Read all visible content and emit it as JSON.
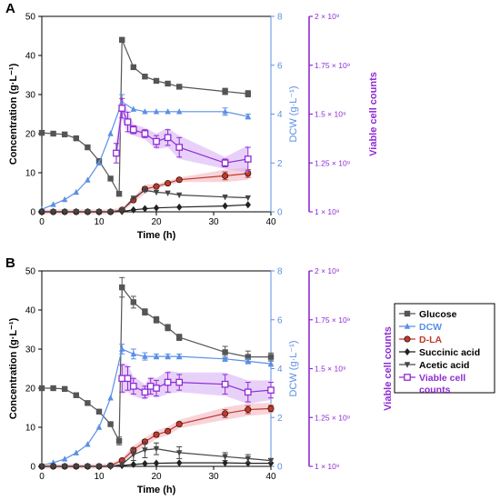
{
  "colors": {
    "glucose": "#555555",
    "dcw": "#5b8fe6",
    "dla": "#c0392b",
    "succinic": "#222222",
    "acetic": "#444444",
    "viable": "#8e2bd4",
    "dla_band": "#f4b7c2",
    "viable_band": "#d9b3f5"
  },
  "legend_items": [
    "Glucose",
    "DCW",
    "D-LA",
    "Succinic acid",
    "Acetic acid",
    "Viable cell counts"
  ],
  "chart_data": [
    {
      "type": "line",
      "panel_label": "A",
      "xlabel": "Time (h)",
      "ylabel": "Concentration (g·L⁻¹)",
      "y2label": "DCW (g·L⁻¹)",
      "y3label": "Viable cell counts",
      "xlim": [
        0,
        40
      ],
      "ylim": [
        0,
        50
      ],
      "y2lim": [
        0,
        8
      ],
      "y3lim": [
        1000000000.0,
        2000000000.0
      ],
      "xticks": [
        "0",
        "10",
        "20",
        "30",
        "40"
      ],
      "yticks": [
        "0",
        "10",
        "20",
        "30",
        "40",
        "50"
      ],
      "y2ticks": [
        "0",
        "2",
        "4",
        "6",
        "8"
      ],
      "y3ticks": [
        "1 × 10⁹",
        "1.25 × 10⁹",
        "1.5 × 10⁹",
        "1.75 × 10⁹",
        "2 × 10⁹"
      ],
      "legend": "none",
      "grid": false,
      "series": [
        {
          "name": "Glucose",
          "axis": "left",
          "marker": "square-filled",
          "x": [
            0,
            2,
            4,
            6,
            8,
            10,
            12,
            13.5,
            14,
            16,
            18,
            20,
            22,
            24,
            32,
            36
          ],
          "y": [
            20.2,
            20,
            19.8,
            18.8,
            16.5,
            13,
            8.5,
            4.6,
            44,
            37,
            34.6,
            33.5,
            32.8,
            32,
            30.8,
            30.2
          ],
          "err": [
            0,
            0,
            0,
            0,
            0,
            0,
            0,
            0,
            0.5,
            0,
            0,
            0,
            0,
            0,
            0.8,
            0.8
          ]
        },
        {
          "name": "DCW",
          "axis": "right",
          "marker": "triangle-up",
          "x": [
            0,
            2,
            4,
            6,
            8,
            10,
            12,
            14,
            16,
            18,
            20,
            22,
            24,
            32,
            36
          ],
          "y": [
            0.1,
            0.3,
            0.5,
            0.8,
            1.3,
            2.0,
            3.2,
            4.5,
            4.2,
            4.1,
            4.1,
            4.1,
            4.1,
            4.1,
            3.9
          ],
          "err": [
            0,
            0,
            0,
            0,
            0,
            0,
            0,
            0.3,
            0,
            0,
            0,
            0,
            0,
            0.15,
            0.1
          ]
        },
        {
          "name": "D-LA",
          "axis": "left",
          "marker": "circle-filled",
          "x": [
            0,
            2,
            4,
            6,
            8,
            10,
            12,
            14,
            16,
            18,
            20,
            22,
            24,
            32,
            36
          ],
          "y": [
            0,
            0,
            0,
            0,
            0,
            0,
            0,
            0.5,
            3,
            5.8,
            6.5,
            7.3,
            8.2,
            9.2,
            9.8
          ],
          "err": [
            0,
            0,
            0,
            0,
            0,
            0,
            0,
            0,
            0,
            0.6,
            0,
            0,
            0,
            1.0,
            1.0
          ]
        },
        {
          "name": "Succinic acid",
          "axis": "left",
          "marker": "diamond-filled",
          "x": [
            0,
            2,
            4,
            6,
            8,
            10,
            12,
            14,
            16,
            18,
            20,
            24,
            32,
            36
          ],
          "y": [
            0,
            0,
            0,
            0,
            0,
            0,
            0,
            0.1,
            0.5,
            0.8,
            1.0,
            1.2,
            1.5,
            1.8
          ],
          "err": [
            0,
            0,
            0,
            0,
            0,
            0,
            0,
            0,
            0,
            0,
            0,
            0,
            0,
            0
          ]
        },
        {
          "name": "Acetic acid",
          "axis": "left",
          "marker": "triangle-down",
          "x": [
            0,
            2,
            4,
            6,
            8,
            10,
            12,
            14,
            16,
            18,
            20,
            22,
            24,
            32,
            36
          ],
          "y": [
            0,
            0,
            0,
            0,
            0,
            0,
            0,
            0.3,
            3.5,
            5.5,
            5.0,
            4.8,
            4.3,
            3.8,
            3.6
          ],
          "err": [
            0,
            0,
            0,
            0,
            0,
            0,
            0,
            0,
            0,
            0,
            0,
            0,
            0,
            0,
            0
          ]
        },
        {
          "name": "Viable cell counts",
          "axis": "third",
          "marker": "square-open",
          "x": [
            13,
            14,
            15,
            16,
            18,
            20,
            22,
            24,
            32,
            36
          ],
          "y": [
            1300000000.0,
            1530000000.0,
            1460000000.0,
            1420000000.0,
            1400000000.0,
            1360000000.0,
            1380000000.0,
            1330000000.0,
            1250000000.0,
            1270000000.0
          ],
          "err": [
            50000000.0,
            50000000.0,
            50000000.0,
            20000000.0,
            20000000.0,
            30000000.0,
            40000000.0,
            50000000.0,
            20000000.0,
            60000000.0
          ]
        }
      ]
    },
    {
      "type": "line",
      "panel_label": "B",
      "xlabel": "Time (h)",
      "ylabel": "Concentration (g·L⁻¹)",
      "y2label": "DCW (g·L⁻¹)",
      "y3label": "Viable cell counts",
      "xlim": [
        0,
        40
      ],
      "ylim": [
        0,
        50
      ],
      "y2lim": [
        0,
        8
      ],
      "y3lim": [
        1000000000.0,
        2000000000.0
      ],
      "xticks": [
        "0",
        "10",
        "20",
        "30",
        "40"
      ],
      "yticks": [
        "0",
        "10",
        "20",
        "30",
        "40",
        "50"
      ],
      "y2ticks": [
        "0",
        "2",
        "4",
        "6",
        "8"
      ],
      "y3ticks": [
        "1 × 10⁹",
        "1.25 × 10⁹",
        "1.5 × 10⁹",
        "1.75 × 10⁹",
        "2 × 10⁹"
      ],
      "legend": "right",
      "grid": false,
      "series": [
        {
          "name": "Glucose",
          "axis": "left",
          "marker": "square-filled",
          "x": [
            0,
            2,
            4,
            6,
            8,
            10,
            12,
            13.5,
            14,
            16,
            18,
            20,
            22,
            24,
            32,
            36,
            40
          ],
          "y": [
            20,
            20,
            19.8,
            18.2,
            16.2,
            14,
            10.8,
            6.5,
            45.8,
            42,
            39.5,
            37.5,
            35.5,
            33,
            29.2,
            28,
            28
          ],
          "err": [
            0,
            0,
            0,
            0,
            0,
            0,
            0,
            1.0,
            2.5,
            1.5,
            0.8,
            0.8,
            0.8,
            0.8,
            1.5,
            1.5,
            1.0
          ]
        },
        {
          "name": "DCW",
          "axis": "right",
          "marker": "triangle-up",
          "x": [
            0,
            2,
            4,
            6,
            8,
            10,
            12,
            14,
            16,
            18,
            20,
            22,
            24,
            32,
            36,
            40
          ],
          "y": [
            0.05,
            0.15,
            0.3,
            0.55,
            0.9,
            1.6,
            2.8,
            4.8,
            4.6,
            4.5,
            4.5,
            4.5,
            4.5,
            4.4,
            4.3,
            4.2
          ],
          "err": [
            0,
            0,
            0,
            0,
            0,
            0,
            0,
            0.2,
            0.2,
            0.15,
            0.1,
            0.1,
            0.1,
            0.1,
            0.1,
            0.1
          ]
        },
        {
          "name": "D-LA",
          "axis": "left",
          "marker": "circle-filled",
          "x": [
            0,
            2,
            4,
            6,
            8,
            10,
            12,
            14,
            16,
            18,
            20,
            22,
            24,
            32,
            36,
            40
          ],
          "y": [
            0,
            0,
            0,
            0,
            0,
            0,
            0.2,
            1.5,
            4.2,
            6.3,
            8.1,
            9.0,
            10.8,
            13.5,
            14.5,
            14.8
          ],
          "err": [
            0,
            0,
            0,
            0,
            0,
            0,
            0,
            0,
            0.5,
            0.5,
            0.5,
            0.5,
            0.5,
            1.0,
            1.0,
            0.8
          ]
        },
        {
          "name": "Succinic acid",
          "axis": "left",
          "marker": "diamond-filled",
          "x": [
            0,
            2,
            4,
            6,
            8,
            10,
            12,
            14,
            16,
            18,
            20,
            24,
            32,
            36,
            40
          ],
          "y": [
            0,
            0,
            0,
            0,
            0,
            0,
            0,
            0.2,
            0.5,
            0.7,
            0.8,
            0.9,
            0.9,
            0.8,
            0.8
          ],
          "err": [
            0,
            0,
            0,
            0,
            0,
            0,
            0,
            0,
            0,
            0,
            0,
            0,
            0,
            0,
            0
          ]
        },
        {
          "name": "Acetic acid",
          "axis": "left",
          "marker": "triangle-down",
          "x": [
            0,
            2,
            4,
            6,
            8,
            10,
            12,
            14,
            16,
            18,
            20,
            24,
            32,
            36,
            40
          ],
          "y": [
            0,
            0,
            0,
            0,
            0,
            0,
            0,
            0.5,
            3.0,
            4.2,
            4.5,
            3.5,
            2.5,
            2.0,
            1.5
          ],
          "err": [
            0,
            0,
            0,
            0,
            0,
            0,
            0,
            0,
            1.5,
            2.0,
            1.5,
            1.5,
            1.0,
            1.0,
            0.5
          ]
        },
        {
          "name": "Viable cell counts",
          "axis": "third",
          "marker": "square-open",
          "x": [
            14,
            15,
            16,
            18,
            19,
            20,
            22,
            24,
            32,
            36,
            40
          ],
          "y": [
            1450000000.0,
            1450000000.0,
            1410000000.0,
            1380000000.0,
            1410000000.0,
            1400000000.0,
            1430000000.0,
            1430000000.0,
            1420000000.0,
            1380000000.0,
            1390000000.0
          ],
          "err": [
            70000000.0,
            60000000.0,
            40000000.0,
            30000000.0,
            40000000.0,
            40000000.0,
            50000000.0,
            40000000.0,
            50000000.0,
            50000000.0,
            40000000.0
          ]
        }
      ]
    }
  ]
}
